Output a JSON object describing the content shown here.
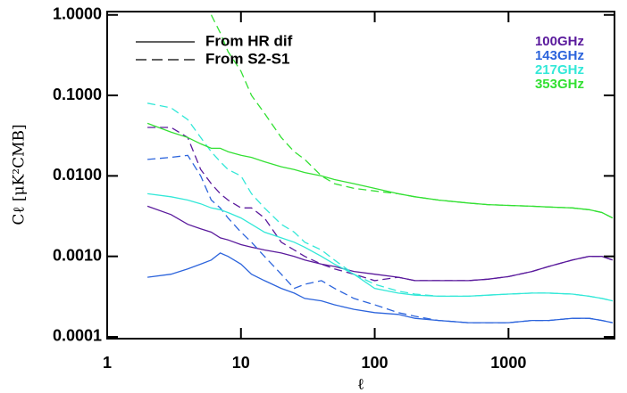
{
  "chart_data": {
    "type": "line",
    "x_label": "ℓ",
    "y_label": "Cℓ [μK²CMB]",
    "log_x": true,
    "log_y": true,
    "xlim": [
      1,
      6200
    ],
    "ylim": [
      9.5e-05,
      1.1
    ],
    "xticks": [
      1,
      10,
      100,
      1000
    ],
    "yticks": [
      {
        "value": 0.0001,
        "label": "0.0001"
      },
      {
        "value": 0.001,
        "label": "0.0010"
      },
      {
        "value": 0.01,
        "label": "0.0100"
      },
      {
        "value": 0.1,
        "label": "0.1000"
      },
      {
        "value": 1,
        "label": "1.0000"
      }
    ],
    "legend_styles": [
      {
        "name": "From HR dif",
        "dashed": false
      },
      {
        "name": "From S2-S1",
        "dashed": true
      }
    ],
    "legend_colors": [
      {
        "name": "100GHz",
        "color": "#5a1a9c"
      },
      {
        "name": "143GHz",
        "color": "#2c64dc"
      },
      {
        "name": "217GHz",
        "color": "#33e8d8"
      },
      {
        "name": "353GHz",
        "color": "#33e033"
      }
    ],
    "x": [
      2,
      3,
      4,
      5,
      6,
      7,
      8,
      10,
      12,
      15,
      20,
      25,
      30,
      40,
      50,
      70,
      100,
      150,
      200,
      300,
      500,
      700,
      1000,
      1500,
      2000,
      3000,
      4000,
      5000,
      6000
    ],
    "series": [
      {
        "color": "#5a1a9c",
        "dashed": false,
        "values": [
          0.0042,
          0.0033,
          0.0025,
          0.0022,
          0.002,
          0.0017,
          0.0016,
          0.0014,
          0.0013,
          0.0012,
          0.0011,
          0.001,
          0.0009,
          0.0008,
          0.00075,
          0.00065,
          0.0006,
          0.00055,
          0.0005,
          0.0005,
          0.0005,
          0.00052,
          0.00056,
          0.00065,
          0.00075,
          0.0009,
          0.001,
          0.001,
          0.0009
        ]
      },
      {
        "color": "#5a1a9c",
        "dashed": true,
        "values": [
          0.04,
          0.04,
          0.03,
          0.012,
          0.008,
          0.006,
          0.005,
          0.004,
          0.004,
          0.003,
          0.0015,
          0.0012,
          0.001,
          0.0008,
          0.0007,
          0.0006,
          0.0005,
          0.00055,
          0.0005,
          0.0005,
          0.0005,
          0.00052,
          0.00056,
          0.00065,
          0.00075,
          0.0009,
          0.001,
          0.001,
          0.0009
        ]
      },
      {
        "color": "#2c64dc",
        "dashed": false,
        "values": [
          0.00055,
          0.0006,
          0.0007,
          0.0008,
          0.0009,
          0.0011,
          0.001,
          0.0008,
          0.0006,
          0.0005,
          0.0004,
          0.00035,
          0.0003,
          0.00028,
          0.00025,
          0.00022,
          0.0002,
          0.00019,
          0.00017,
          0.00016,
          0.00015,
          0.00015,
          0.00015,
          0.00016,
          0.00016,
          0.00017,
          0.00017,
          0.00016,
          0.00015
        ]
      },
      {
        "color": "#2c64dc",
        "dashed": true,
        "values": [
          0.016,
          0.017,
          0.018,
          0.01,
          0.005,
          0.004,
          0.003,
          0.002,
          0.0015,
          0.001,
          0.0006,
          0.0004,
          0.00045,
          0.0005,
          0.0004,
          0.0003,
          0.00025,
          0.0002,
          0.00018,
          0.00016,
          0.00015,
          0.00015,
          0.00015,
          0.00016,
          0.00016,
          0.00017,
          0.00017,
          0.00016,
          0.00015
        ]
      },
      {
        "color": "#33e8d8",
        "dashed": false,
        "values": [
          0.006,
          0.0055,
          0.005,
          0.0045,
          0.004,
          0.0038,
          0.0035,
          0.003,
          0.0025,
          0.002,
          0.0017,
          0.0015,
          0.0013,
          0.001,
          0.0008,
          0.0006,
          0.0004,
          0.00035,
          0.00033,
          0.00032,
          0.00032,
          0.00033,
          0.00034,
          0.00035,
          0.00035,
          0.00034,
          0.00032,
          0.0003,
          0.00028
        ]
      },
      {
        "color": "#33e8d8",
        "dashed": true,
        "values": [
          0.08,
          0.07,
          0.05,
          0.03,
          0.02,
          0.015,
          0.012,
          0.01,
          0.006,
          0.004,
          0.0025,
          0.002,
          0.0015,
          0.0012,
          0.0009,
          0.0006,
          0.00045,
          0.00037,
          0.00034,
          0.00032,
          0.00032,
          0.00033,
          0.00034,
          0.00035,
          0.00035,
          0.00034,
          0.00032,
          0.0003,
          0.00028
        ]
      },
      {
        "color": "#33e033",
        "dashed": false,
        "values": [
          0.045,
          0.035,
          0.03,
          0.025,
          0.022,
          0.022,
          0.02,
          0.018,
          0.017,
          0.015,
          0.013,
          0.012,
          0.011,
          0.01,
          0.009,
          0.008,
          0.007,
          0.006,
          0.0055,
          0.005,
          0.0046,
          0.0044,
          0.0043,
          0.0042,
          0.0041,
          0.004,
          0.0038,
          0.0035,
          0.003
        ]
      },
      {
        "color": "#33e033",
        "dashed": true,
        "values": [
          null,
          null,
          null,
          null,
          1.0,
          0.6,
          0.35,
          0.2,
          0.1,
          0.06,
          0.03,
          0.02,
          0.016,
          0.01,
          0.008,
          0.007,
          0.0065,
          0.006,
          0.0055,
          0.005,
          0.0046,
          0.0044,
          0.0043,
          0.0042,
          0.0041,
          0.004,
          0.0038,
          0.0035,
          0.003
        ]
      }
    ]
  }
}
